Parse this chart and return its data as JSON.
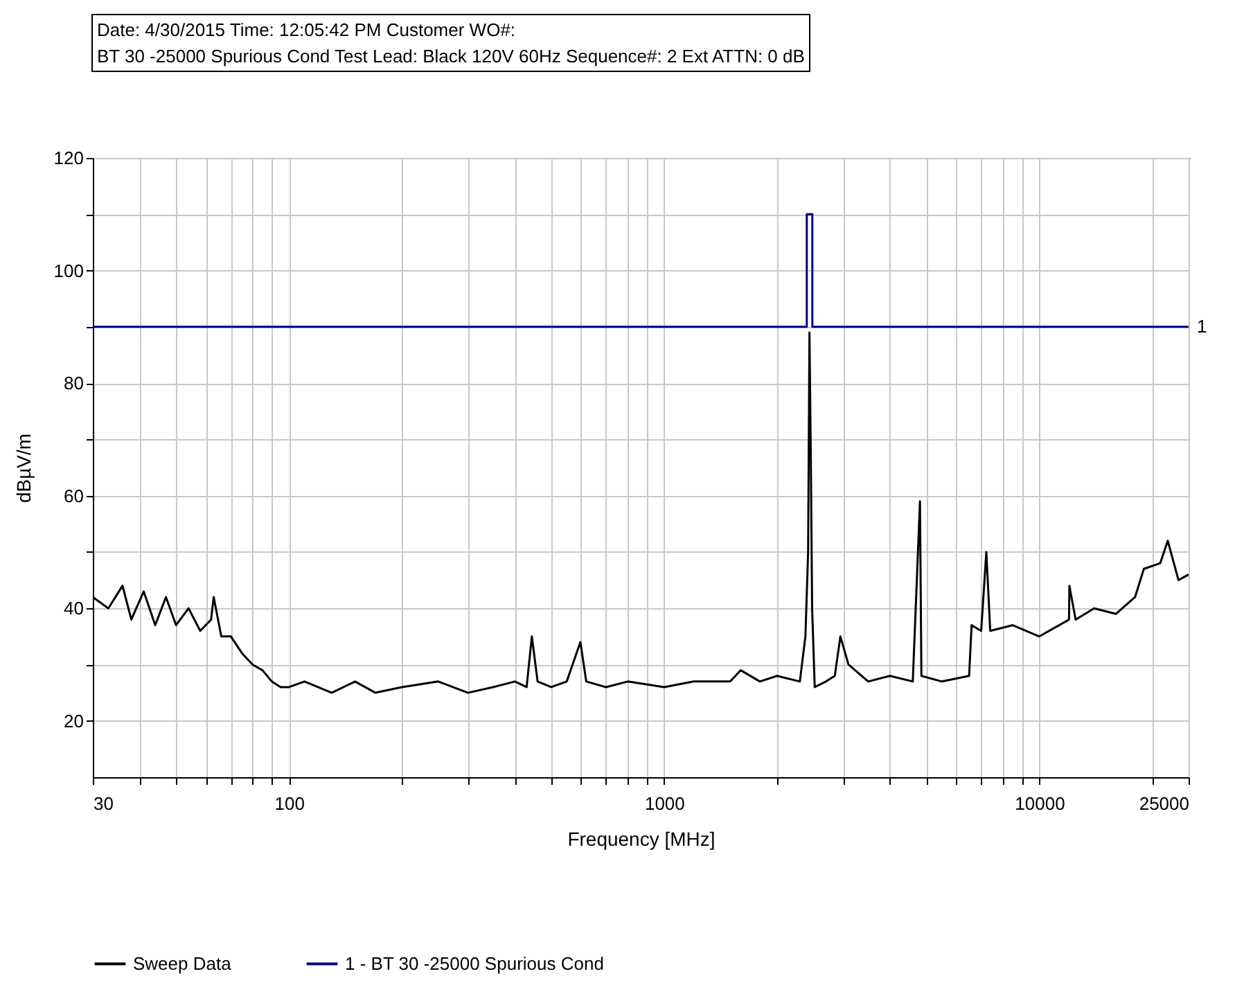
{
  "chart_data": {
    "type": "line",
    "title": "Date:  4/30/2015  Time: 12:05:42 PM  Customer WO#:",
    "subtitle": "BT 30 -25000 Spurious Cond  Test Lead: Black 120V 60Hz Sequence#: 2 Ext ATTN: 0 dB",
    "xlabel": "Frequency [MHz]",
    "ylabel": "dBµV/m",
    "series": [
      {
        "name": "Sweep Data",
        "color": "#000000",
        "x": [
          30,
          33,
          36,
          38,
          41,
          44,
          47,
          50,
          54,
          58,
          62,
          63,
          66,
          70,
          75,
          80,
          85,
          90,
          95,
          100,
          110,
          130,
          150,
          170,
          200,
          250,
          300,
          350,
          400,
          430,
          444,
          460,
          500,
          550,
          598,
          620,
          700,
          800,
          1000,
          1200,
          1500,
          1600,
          1800,
          2000,
          2300,
          2380,
          2420,
          2440,
          2460,
          2480,
          2520,
          2700,
          2850,
          2950,
          3100,
          3500,
          4000,
          4600,
          4808,
          4850,
          5500,
          6500,
          6600,
          7000,
          7224,
          7400,
          8500,
          10000,
          12000,
          12030,
          12500,
          14000,
          16000,
          18000,
          19000,
          21000,
          22000,
          23500,
          25000
        ],
        "values": [
          42,
          40,
          44,
          38,
          43,
          37,
          42,
          37,
          40,
          36,
          38,
          42,
          35,
          35,
          32,
          30,
          29,
          27,
          26,
          26,
          27,
          25,
          27,
          25,
          26,
          27,
          25,
          26,
          27,
          26,
          35,
          27,
          26,
          27,
          34,
          27,
          26,
          27,
          26,
          27,
          27,
          29,
          27,
          28,
          27,
          35,
          50,
          89,
          67,
          40,
          26,
          27,
          28,
          35,
          30,
          27,
          28,
          27,
          59,
          28,
          27,
          28,
          37,
          36,
          50,
          36,
          37,
          35,
          38,
          44,
          38,
          40,
          39,
          42,
          47,
          48,
          52,
          45,
          46
        ]
      },
      {
        "name": "1 - BT 30 -25000 Spurious Cond",
        "color": "#000080",
        "x": [
          30,
          2400,
          2400,
          2483.5,
          2483.5,
          25000
        ],
        "values": [
          90,
          90,
          110,
          110,
          90,
          90
        ]
      }
    ],
    "xlim": [
      30,
      25000
    ],
    "xticks": [
      30,
      {
        "value": 40,
        "label": null
      },
      {
        "value": 50,
        "label": null
      },
      {
        "value": 60,
        "label": null
      },
      {
        "value": 70,
        "label": null
      },
      {
        "value": 80,
        "label": null
      },
      {
        "value": 90,
        "label": null
      },
      100,
      {
        "value": 200,
        "label": null
      },
      {
        "value": 300,
        "label": null
      },
      {
        "value": 400,
        "label": null
      },
      {
        "value": 500,
        "label": null
      },
      {
        "value": 600,
        "label": null
      },
      {
        "value": 700,
        "label": null
      },
      {
        "value": 800,
        "label": null
      },
      {
        "value": 900,
        "label": null
      },
      1000,
      {
        "value": 2000,
        "label": null
      },
      {
        "value": 3000,
        "label": null
      },
      {
        "value": 4000,
        "label": null
      },
      {
        "value": 5000,
        "label": null
      },
      {
        "value": 6000,
        "label": null
      },
      {
        "value": 7000,
        "label": null
      },
      {
        "value": 8000,
        "label": null
      },
      {
        "value": 9000,
        "label": null
      },
      10000,
      {
        "value": 20000,
        "label": null
      },
      25000
    ],
    "ylim": [
      10,
      120
    ],
    "yticks": [
      20,
      {
        "value": 30,
        "label": null
      },
      40,
      {
        "value": 50,
        "label": null
      },
      60,
      {
        "value": 70,
        "label": null
      },
      80,
      {
        "value": 90,
        "label": null
      },
      100,
      {
        "value": 110,
        "label": null
      },
      120
    ],
    "log": "x",
    "grid": true,
    "legend": "bottom",
    "line_style": "solid",
    "annotations": [
      {
        "text": "1",
        "x": 25000,
        "y": 90
      }
    ]
  }
}
